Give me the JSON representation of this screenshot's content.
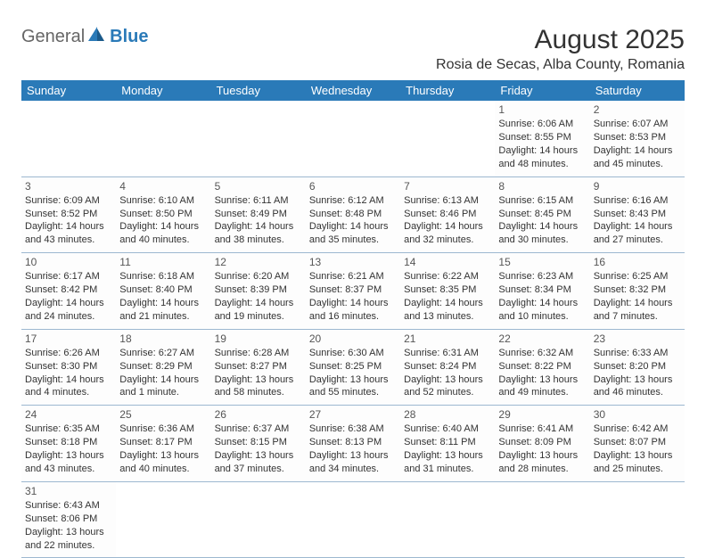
{
  "brand": {
    "part1": "General",
    "part2": "Blue"
  },
  "title": "August 2025",
  "location": "Rosia de Secas, Alba County, Romania",
  "colors": {
    "header_bg": "#2a7ab8",
    "header_text": "#ffffff",
    "grid_line": "#9db8d0",
    "body_text": "#333333",
    "brand_gray": "#666666",
    "brand_blue": "#2a7ab8",
    "page_bg": "#ffffff"
  },
  "typography": {
    "title_fontsize": 30,
    "location_fontsize": 16,
    "header_fontsize": 13,
    "cell_fontsize": 11
  },
  "calendar": {
    "type": "table",
    "columns": [
      "Sunday",
      "Monday",
      "Tuesday",
      "Wednesday",
      "Thursday",
      "Friday",
      "Saturday"
    ],
    "weeks": [
      [
        null,
        null,
        null,
        null,
        null,
        {
          "day": "1",
          "sunrise": "Sunrise: 6:06 AM",
          "sunset": "Sunset: 8:55 PM",
          "daylight": "Daylight: 14 hours and 48 minutes."
        },
        {
          "day": "2",
          "sunrise": "Sunrise: 6:07 AM",
          "sunset": "Sunset: 8:53 PM",
          "daylight": "Daylight: 14 hours and 45 minutes."
        }
      ],
      [
        {
          "day": "3",
          "sunrise": "Sunrise: 6:09 AM",
          "sunset": "Sunset: 8:52 PM",
          "daylight": "Daylight: 14 hours and 43 minutes."
        },
        {
          "day": "4",
          "sunrise": "Sunrise: 6:10 AM",
          "sunset": "Sunset: 8:50 PM",
          "daylight": "Daylight: 14 hours and 40 minutes."
        },
        {
          "day": "5",
          "sunrise": "Sunrise: 6:11 AM",
          "sunset": "Sunset: 8:49 PM",
          "daylight": "Daylight: 14 hours and 38 minutes."
        },
        {
          "day": "6",
          "sunrise": "Sunrise: 6:12 AM",
          "sunset": "Sunset: 8:48 PM",
          "daylight": "Daylight: 14 hours and 35 minutes."
        },
        {
          "day": "7",
          "sunrise": "Sunrise: 6:13 AM",
          "sunset": "Sunset: 8:46 PM",
          "daylight": "Daylight: 14 hours and 32 minutes."
        },
        {
          "day": "8",
          "sunrise": "Sunrise: 6:15 AM",
          "sunset": "Sunset: 8:45 PM",
          "daylight": "Daylight: 14 hours and 30 minutes."
        },
        {
          "day": "9",
          "sunrise": "Sunrise: 6:16 AM",
          "sunset": "Sunset: 8:43 PM",
          "daylight": "Daylight: 14 hours and 27 minutes."
        }
      ],
      [
        {
          "day": "10",
          "sunrise": "Sunrise: 6:17 AM",
          "sunset": "Sunset: 8:42 PM",
          "daylight": "Daylight: 14 hours and 24 minutes."
        },
        {
          "day": "11",
          "sunrise": "Sunrise: 6:18 AM",
          "sunset": "Sunset: 8:40 PM",
          "daylight": "Daylight: 14 hours and 21 minutes."
        },
        {
          "day": "12",
          "sunrise": "Sunrise: 6:20 AM",
          "sunset": "Sunset: 8:39 PM",
          "daylight": "Daylight: 14 hours and 19 minutes."
        },
        {
          "day": "13",
          "sunrise": "Sunrise: 6:21 AM",
          "sunset": "Sunset: 8:37 PM",
          "daylight": "Daylight: 14 hours and 16 minutes."
        },
        {
          "day": "14",
          "sunrise": "Sunrise: 6:22 AM",
          "sunset": "Sunset: 8:35 PM",
          "daylight": "Daylight: 14 hours and 13 minutes."
        },
        {
          "day": "15",
          "sunrise": "Sunrise: 6:23 AM",
          "sunset": "Sunset: 8:34 PM",
          "daylight": "Daylight: 14 hours and 10 minutes."
        },
        {
          "day": "16",
          "sunrise": "Sunrise: 6:25 AM",
          "sunset": "Sunset: 8:32 PM",
          "daylight": "Daylight: 14 hours and 7 minutes."
        }
      ],
      [
        {
          "day": "17",
          "sunrise": "Sunrise: 6:26 AM",
          "sunset": "Sunset: 8:30 PM",
          "daylight": "Daylight: 14 hours and 4 minutes."
        },
        {
          "day": "18",
          "sunrise": "Sunrise: 6:27 AM",
          "sunset": "Sunset: 8:29 PM",
          "daylight": "Daylight: 14 hours and 1 minute."
        },
        {
          "day": "19",
          "sunrise": "Sunrise: 6:28 AM",
          "sunset": "Sunset: 8:27 PM",
          "daylight": "Daylight: 13 hours and 58 minutes."
        },
        {
          "day": "20",
          "sunrise": "Sunrise: 6:30 AM",
          "sunset": "Sunset: 8:25 PM",
          "daylight": "Daylight: 13 hours and 55 minutes."
        },
        {
          "day": "21",
          "sunrise": "Sunrise: 6:31 AM",
          "sunset": "Sunset: 8:24 PM",
          "daylight": "Daylight: 13 hours and 52 minutes."
        },
        {
          "day": "22",
          "sunrise": "Sunrise: 6:32 AM",
          "sunset": "Sunset: 8:22 PM",
          "daylight": "Daylight: 13 hours and 49 minutes."
        },
        {
          "day": "23",
          "sunrise": "Sunrise: 6:33 AM",
          "sunset": "Sunset: 8:20 PM",
          "daylight": "Daylight: 13 hours and 46 minutes."
        }
      ],
      [
        {
          "day": "24",
          "sunrise": "Sunrise: 6:35 AM",
          "sunset": "Sunset: 8:18 PM",
          "daylight": "Daylight: 13 hours and 43 minutes."
        },
        {
          "day": "25",
          "sunrise": "Sunrise: 6:36 AM",
          "sunset": "Sunset: 8:17 PM",
          "daylight": "Daylight: 13 hours and 40 minutes."
        },
        {
          "day": "26",
          "sunrise": "Sunrise: 6:37 AM",
          "sunset": "Sunset: 8:15 PM",
          "daylight": "Daylight: 13 hours and 37 minutes."
        },
        {
          "day": "27",
          "sunrise": "Sunrise: 6:38 AM",
          "sunset": "Sunset: 8:13 PM",
          "daylight": "Daylight: 13 hours and 34 minutes."
        },
        {
          "day": "28",
          "sunrise": "Sunrise: 6:40 AM",
          "sunset": "Sunset: 8:11 PM",
          "daylight": "Daylight: 13 hours and 31 minutes."
        },
        {
          "day": "29",
          "sunrise": "Sunrise: 6:41 AM",
          "sunset": "Sunset: 8:09 PM",
          "daylight": "Daylight: 13 hours and 28 minutes."
        },
        {
          "day": "30",
          "sunrise": "Sunrise: 6:42 AM",
          "sunset": "Sunset: 8:07 PM",
          "daylight": "Daylight: 13 hours and 25 minutes."
        }
      ],
      [
        {
          "day": "31",
          "sunrise": "Sunrise: 6:43 AM",
          "sunset": "Sunset: 8:06 PM",
          "daylight": "Daylight: 13 hours and 22 minutes."
        },
        null,
        null,
        null,
        null,
        null,
        null
      ]
    ]
  }
}
